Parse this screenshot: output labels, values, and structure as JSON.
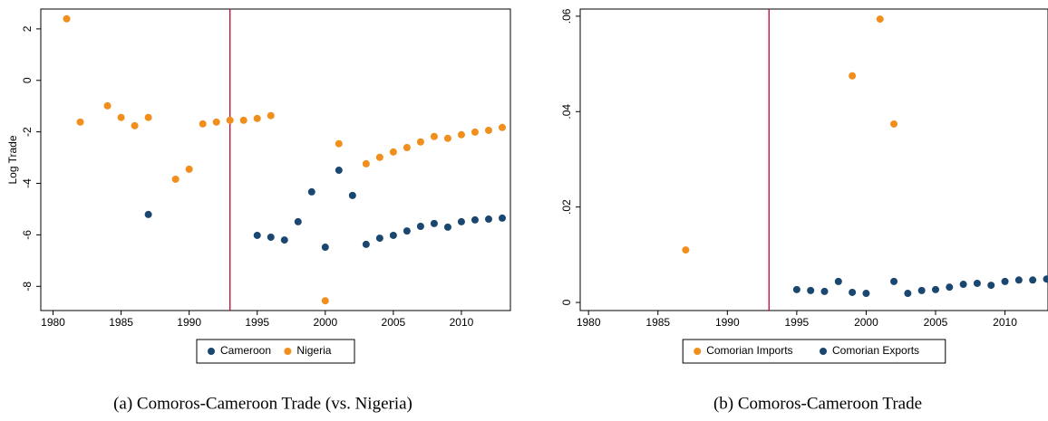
{
  "chart_data": [
    {
      "type": "scatter",
      "caption": "(a) Comoros-Cameroon Trade (vs. Nigeria)",
      "y_label": "Log Trade",
      "xlim": [
        1979.1,
        2013.6
      ],
      "ylim": [
        -8.94,
        2.77
      ],
      "xticks": [
        1980,
        1985,
        1990,
        1995,
        2000,
        2005,
        2010
      ],
      "yticks": [
        -8,
        -6,
        -4,
        -2,
        0,
        2
      ],
      "vline": 1993,
      "vline_color": "#c10534",
      "series": [
        {
          "name": "Cameroon",
          "color": "#1a476f",
          "x": [
            1987,
            1995,
            1996,
            1997,
            1998,
            1999,
            2000,
            2001,
            2002,
            2003,
            2004,
            2005,
            2006,
            2007,
            2008,
            2009,
            2010,
            2011,
            2012,
            2013
          ],
          "values": [
            -5.21,
            -6.02,
            -6.09,
            -6.2,
            -5.49,
            -4.33,
            -6.48,
            -3.49,
            -4.47,
            -6.37,
            -6.13,
            -6.02,
            -5.85,
            -5.67,
            -5.56,
            -5.7,
            -5.49,
            -5.42,
            -5.39,
            -5.35
          ]
        },
        {
          "name": "Nigeria",
          "color": "#f28e1c",
          "x": [
            1981,
            1982,
            1984,
            1985,
            1986,
            1987,
            1989,
            1990,
            1991,
            1992,
            1993,
            1994,
            1995,
            1996,
            2000,
            2001,
            2003,
            2004,
            2005,
            2006,
            2007,
            2008,
            2009,
            2010,
            2011,
            2012,
            2013
          ],
          "values": [
            2.39,
            -1.62,
            -0.99,
            -1.44,
            -1.76,
            -1.44,
            -3.84,
            -3.45,
            -1.69,
            -1.62,
            -1.55,
            -1.55,
            -1.48,
            -1.37,
            -8.56,
            -2.46,
            -3.24,
            -2.99,
            -2.78,
            -2.61,
            -2.39,
            -2.18,
            -2.25,
            -2.11,
            -2.01,
            -1.94,
            -1.83
          ]
        }
      ]
    },
    {
      "type": "scatter",
      "caption": "(b) Comoros-Cameroon Trade",
      "xlim": [
        1979.4,
        2013.1
      ],
      "ylim": [
        -0.0017,
        0.0615
      ],
      "xticks": [
        1980,
        1985,
        1990,
        1995,
        2000,
        2005,
        2010
      ],
      "yticks": [
        0,
        {
          "value": 0.02,
          "label": ".02"
        },
        {
          "value": 0.04,
          "label": ".04"
        },
        {
          "value": 0.06,
          "label": ".06"
        }
      ],
      "vline": 1993,
      "vline_color": "#c10534",
      "series": [
        {
          "name": "Comorian Imports",
          "color": "#f28e1c",
          "x": [
            1987,
            1999,
            2001,
            2002
          ],
          "values": [
            0.011,
            0.0475,
            0.0594,
            0.0374
          ]
        },
        {
          "name": "Comorian Exports",
          "color": "#1a476f",
          "x": [
            1995,
            1996,
            1997,
            1998,
            1999,
            2000,
            2002,
            2003,
            2004,
            2005,
            2006,
            2007,
            2008,
            2009,
            2010,
            2011,
            2012,
            2013
          ],
          "values": [
            0.0027,
            0.0025,
            0.0023,
            0.0044,
            0.0021,
            0.0019,
            0.0044,
            0.0019,
            0.0025,
            0.0027,
            0.0032,
            0.0038,
            0.004,
            0.0036,
            0.0044,
            0.0047,
            0.0047,
            0.0049
          ]
        }
      ]
    }
  ]
}
